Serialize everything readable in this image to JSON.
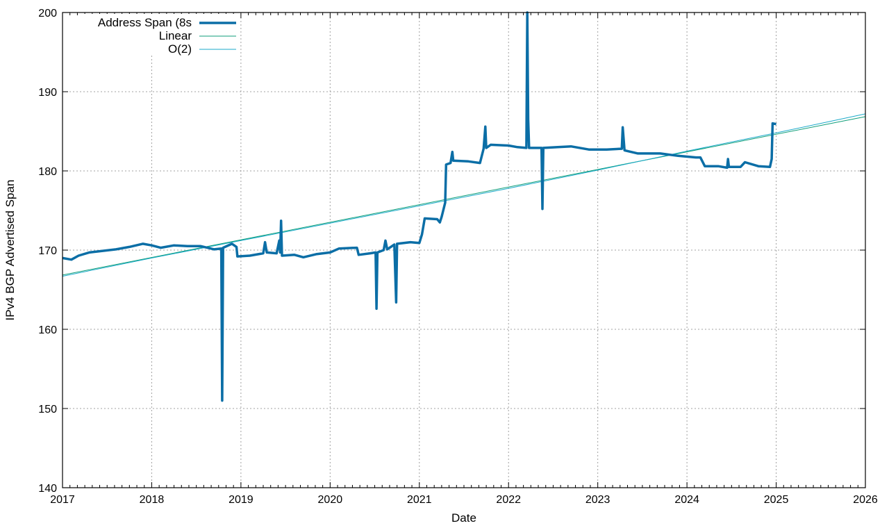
{
  "chart_data": {
    "type": "line",
    "title": "",
    "xlabel": "Date",
    "ylabel": "IPv4 BGP Advertised Span",
    "xlim": [
      2017,
      2026
    ],
    "ylim": [
      140,
      200
    ],
    "x_ticks": [
      "2017",
      "2018",
      "2019",
      "2020",
      "2021",
      "2022",
      "2023",
      "2024",
      "2025",
      "2026"
    ],
    "y_ticks": [
      "140",
      "150",
      "160",
      "170",
      "180",
      "190",
      "200"
    ],
    "grid": true,
    "legend_position": "top-left",
    "series": [
      {
        "name": "Address Span (8s",
        "color": "#0b6ea6",
        "style": "thick",
        "points": [
          [
            2017.0,
            169.0
          ],
          [
            2017.1,
            168.8
          ],
          [
            2017.18,
            169.3
          ],
          [
            2017.3,
            169.7
          ],
          [
            2017.45,
            169.9
          ],
          [
            2017.6,
            170.1
          ],
          [
            2017.75,
            170.4
          ],
          [
            2017.9,
            170.8
          ],
          [
            2018.0,
            170.6
          ],
          [
            2018.1,
            170.3
          ],
          [
            2018.25,
            170.6
          ],
          [
            2018.4,
            170.5
          ],
          [
            2018.55,
            170.5
          ],
          [
            2018.7,
            170.1
          ],
          [
            2018.78,
            170.2
          ],
          [
            2018.79,
            151.0
          ],
          [
            2018.8,
            170.3
          ],
          [
            2018.9,
            170.8
          ],
          [
            2018.95,
            170.4
          ],
          [
            2018.96,
            169.2
          ],
          [
            2019.1,
            169.3
          ],
          [
            2019.25,
            169.6
          ],
          [
            2019.27,
            171.0
          ],
          [
            2019.29,
            169.7
          ],
          [
            2019.4,
            169.6
          ],
          [
            2019.43,
            171.2
          ],
          [
            2019.44,
            169.7
          ],
          [
            2019.45,
            173.7
          ],
          [
            2019.46,
            169.3
          ],
          [
            2019.6,
            169.4
          ],
          [
            2019.7,
            169.1
          ],
          [
            2019.85,
            169.5
          ],
          [
            2020.0,
            169.7
          ],
          [
            2020.1,
            170.2
          ],
          [
            2020.3,
            170.3
          ],
          [
            2020.32,
            169.4
          ],
          [
            2020.45,
            169.6
          ],
          [
            2020.51,
            169.7
          ],
          [
            2020.52,
            162.6
          ],
          [
            2020.53,
            169.7
          ],
          [
            2020.6,
            170.0
          ],
          [
            2020.62,
            171.2
          ],
          [
            2020.64,
            170.1
          ],
          [
            2020.72,
            170.7
          ],
          [
            2020.74,
            163.4
          ],
          [
            2020.75,
            170.8
          ],
          [
            2020.9,
            171.0
          ],
          [
            2021.0,
            170.9
          ],
          [
            2021.03,
            172.0
          ],
          [
            2021.06,
            174.0
          ],
          [
            2021.2,
            173.9
          ],
          [
            2021.23,
            173.5
          ],
          [
            2021.25,
            174.2
          ],
          [
            2021.29,
            176.0
          ],
          [
            2021.3,
            180.8
          ],
          [
            2021.35,
            181.0
          ],
          [
            2021.37,
            182.4
          ],
          [
            2021.38,
            181.3
          ],
          [
            2021.55,
            181.2
          ],
          [
            2021.68,
            181.0
          ],
          [
            2021.72,
            182.8
          ],
          [
            2021.74,
            185.6
          ],
          [
            2021.75,
            182.9
          ],
          [
            2021.8,
            183.3
          ],
          [
            2022.0,
            183.2
          ],
          [
            2022.1,
            183.0
          ],
          [
            2022.2,
            182.9
          ],
          [
            2022.21,
            200.0
          ],
          [
            2022.22,
            186.5
          ],
          [
            2022.23,
            182.9
          ],
          [
            2022.37,
            182.9
          ],
          [
            2022.38,
            175.2
          ],
          [
            2022.39,
            182.9
          ],
          [
            2022.55,
            183.0
          ],
          [
            2022.7,
            183.1
          ],
          [
            2022.9,
            182.7
          ],
          [
            2023.1,
            182.7
          ],
          [
            2023.27,
            182.8
          ],
          [
            2023.28,
            185.5
          ],
          [
            2023.3,
            182.6
          ],
          [
            2023.45,
            182.2
          ],
          [
            2023.7,
            182.2
          ],
          [
            2023.9,
            181.9
          ],
          [
            2024.1,
            181.7
          ],
          [
            2024.15,
            181.7
          ],
          [
            2024.2,
            180.6
          ],
          [
            2024.35,
            180.6
          ],
          [
            2024.45,
            180.4
          ],
          [
            2024.46,
            181.5
          ],
          [
            2024.47,
            180.5
          ],
          [
            2024.6,
            180.5
          ],
          [
            2024.65,
            181.1
          ],
          [
            2024.8,
            180.6
          ],
          [
            2024.93,
            180.5
          ],
          [
            2024.95,
            181.5
          ],
          [
            2024.96,
            186.0
          ],
          [
            2025.0,
            185.9
          ]
        ]
      },
      {
        "name": "Linear",
        "color": "#0e9e78",
        "style": "thin",
        "points": [
          [
            2017,
            166.85
          ],
          [
            2026,
            186.85
          ]
        ]
      },
      {
        "name": "O(2)",
        "color": "#1aa9c9",
        "style": "thin",
        "points": [
          [
            2017.0,
            166.7
          ],
          [
            2018.0,
            169.0
          ],
          [
            2019.0,
            171.2
          ],
          [
            2020.0,
            173.4
          ],
          [
            2021.0,
            175.6
          ],
          [
            2022.0,
            177.8
          ],
          [
            2023.0,
            180.1
          ],
          [
            2024.0,
            182.5
          ],
          [
            2025.0,
            184.8
          ],
          [
            2026.0,
            187.2
          ]
        ]
      }
    ]
  }
}
